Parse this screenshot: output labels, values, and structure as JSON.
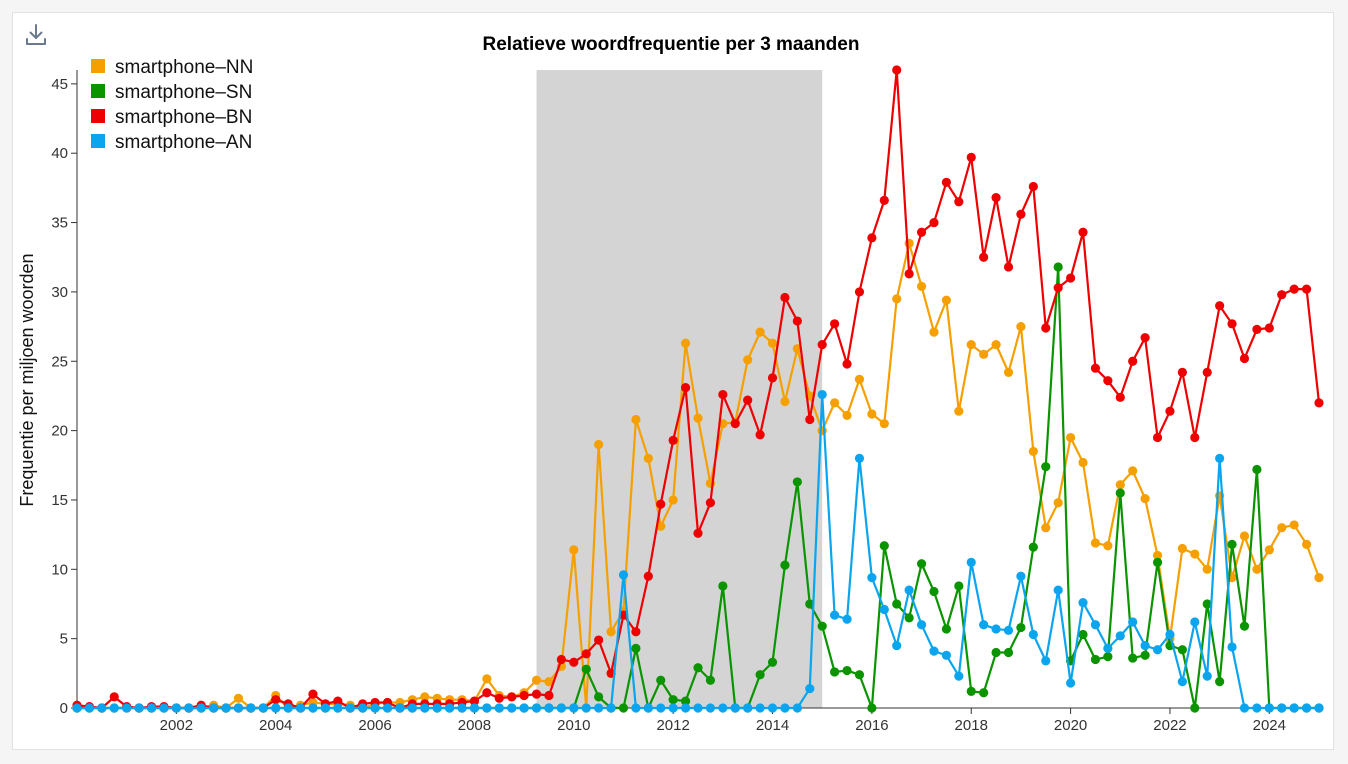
{
  "toolbar": {
    "download_icon": "download-icon"
  },
  "colors": {
    "NN": "#f5a000",
    "SN": "#0a9400",
    "BN": "#ee0000",
    "AN": "#0aa5ee",
    "highlight": "#d4d4d4",
    "axis": "#333333"
  },
  "chart_data": {
    "type": "line",
    "title": "Relatieve woordfrequentie per 3 maanden",
    "xlabel": "",
    "ylabel": "Frequentie per miljoen woorden",
    "xlim": [
      2000,
      2025
    ],
    "ylim": [
      0,
      46
    ],
    "xticks": [
      2002,
      2004,
      2006,
      2008,
      2010,
      2012,
      2014,
      2016,
      2018,
      2020,
      2022,
      2024
    ],
    "yticks": [
      0,
      5,
      10,
      15,
      20,
      25,
      30,
      35,
      40,
      45
    ],
    "highlight_range": [
      2009.25,
      2015.0
    ],
    "legend_position": "top-left",
    "grid": false,
    "x": [
      2000.0,
      2000.25,
      2000.5,
      2000.75,
      2001.0,
      2001.25,
      2001.5,
      2001.75,
      2002.0,
      2002.25,
      2002.5,
      2002.75,
      2003.0,
      2003.25,
      2003.5,
      2003.75,
      2004.0,
      2004.25,
      2004.5,
      2004.75,
      2005.0,
      2005.25,
      2005.5,
      2005.75,
      2006.0,
      2006.25,
      2006.5,
      2006.75,
      2007.0,
      2007.25,
      2007.5,
      2007.75,
      2008.0,
      2008.25,
      2008.5,
      2008.75,
      2009.0,
      2009.25,
      2009.5,
      2009.75,
      2010.0,
      2010.25,
      2010.5,
      2010.75,
      2011.0,
      2011.25,
      2011.5,
      2011.75,
      2012.0,
      2012.25,
      2012.5,
      2012.75,
      2013.0,
      2013.25,
      2013.5,
      2013.75,
      2014.0,
      2014.25,
      2014.5,
      2014.75,
      2015.0,
      2015.25,
      2015.5,
      2015.75,
      2016.0,
      2016.25,
      2016.5,
      2016.75,
      2017.0,
      2017.25,
      2017.5,
      2017.75,
      2018.0,
      2018.25,
      2018.5,
      2018.75,
      2019.0,
      2019.25,
      2019.5,
      2019.75,
      2020.0,
      2020.25,
      2020.5,
      2020.75,
      2021.0,
      2021.25,
      2021.5,
      2021.75,
      2022.0,
      2022.25,
      2022.5,
      2022.75,
      2023.0,
      2023.25,
      2023.5,
      2023.75,
      2024.0,
      2024.25,
      2024.5,
      2024.75,
      2025.0
    ],
    "series": [
      {
        "name": "smartphone–NN",
        "color": "#f5a000",
        "values": [
          0,
          0,
          0,
          0,
          0,
          0,
          0,
          0,
          0,
          0,
          0,
          0.2,
          0,
          0.7,
          0,
          0,
          0.9,
          0,
          0.2,
          0.4,
          0.3,
          0.3,
          0.2,
          0,
          0.3,
          0.4,
          0.4,
          0.6,
          0.8,
          0.7,
          0.6,
          0.6,
          0.5,
          2.1,
          0.9,
          0.8,
          1.1,
          2.0,
          1.9,
          3.0,
          11.4,
          0,
          19.0,
          5.5,
          7.0,
          20.8,
          18.0,
          13.1,
          15.0,
          26.3,
          20.9,
          16.2,
          20.5,
          20.6,
          25.1,
          27.1,
          26.3,
          22.1,
          25.9,
          22.5,
          20.0,
          22.0,
          21.1,
          23.7,
          21.2,
          20.5,
          29.5,
          33.5,
          30.4,
          27.1,
          29.4,
          21.4,
          26.2,
          25.5,
          26.2,
          24.2,
          27.5,
          18.5,
          13.0,
          14.8,
          19.5,
          17.7,
          11.9,
          11.7,
          16.1,
          17.1,
          15.1,
          11.0,
          5.0,
          11.5,
          11.1,
          10.0,
          15.3,
          9.4,
          12.4,
          10.0,
          11.4,
          13.0,
          13.2,
          11.8,
          9.4
        ]
      },
      {
        "name": "smartphone–SN",
        "color": "#0a9400",
        "values": [
          0,
          0,
          0,
          0,
          0,
          0,
          0,
          0,
          0,
          0,
          0,
          0,
          0,
          0,
          0,
          0,
          0,
          0,
          0,
          0,
          0,
          0,
          0,
          0,
          0,
          0,
          0,
          0,
          0,
          0,
          0,
          0,
          0,
          0,
          0,
          0,
          0,
          0,
          0,
          0,
          0,
          2.8,
          0.8,
          0,
          0,
          4.3,
          0,
          2.0,
          0.6,
          0.5,
          2.9,
          2.0,
          8.8,
          0,
          0,
          2.4,
          3.3,
          10.3,
          16.3,
          7.5,
          5.9,
          2.6,
          2.7,
          2.4,
          0,
          11.7,
          7.5,
          6.5,
          10.4,
          8.4,
          5.7,
          8.8,
          1.2,
          1.1,
          4.0,
          4.0,
          5.8,
          11.6,
          17.4,
          31.8,
          3.4,
          5.3,
          3.5,
          3.7,
          15.5,
          3.6,
          3.8,
          10.5,
          4.5,
          4.2,
          0,
          7.5,
          1.9,
          11.8,
          5.9,
          17.2,
          0,
          0,
          0,
          0,
          0
        ]
      },
      {
        "name": "smartphone–BN",
        "color": "#ee0000",
        "values": [
          0.2,
          0.1,
          0,
          0.8,
          0.1,
          0,
          0.1,
          0.1,
          0,
          0,
          0.2,
          0,
          0,
          0,
          0,
          0,
          0.6,
          0.3,
          0,
          1.0,
          0.3,
          0.5,
          0,
          0.3,
          0.4,
          0.4,
          0,
          0.3,
          0.3,
          0.3,
          0.3,
          0.4,
          0.5,
          1.1,
          0.7,
          0.8,
          0.9,
          1.0,
          0.9,
          3.5,
          3.3,
          3.9,
          4.9,
          2.5,
          6.7,
          5.5,
          9.5,
          14.7,
          19.3,
          23.1,
          12.6,
          14.8,
          22.6,
          20.5,
          22.2,
          19.7,
          23.8,
          29.6,
          27.9,
          20.8,
          26.2,
          27.7,
          24.8,
          30.0,
          33.9,
          36.6,
          46.0,
          31.3,
          34.3,
          35.0,
          37.9,
          36.5,
          39.7,
          32.5,
          36.8,
          31.8,
          35.6,
          37.6,
          27.4,
          30.3,
          31.0,
          34.3,
          24.5,
          23.6,
          22.4,
          25.0,
          26.7,
          19.5,
          21.4,
          24.2,
          19.5,
          24.2,
          29.0,
          27.7,
          25.2,
          27.3,
          27.4,
          29.8,
          30.2,
          30.2,
          22.0
        ]
      },
      {
        "name": "smartphone–AN",
        "color": "#0aa5ee",
        "values": [
          0,
          0,
          0,
          0,
          0,
          0,
          0,
          0,
          0,
          0,
          0,
          0,
          0,
          0,
          0,
          0,
          0,
          0,
          0,
          0,
          0,
          0,
          0,
          0,
          0,
          0,
          0,
          0,
          0,
          0,
          0,
          0,
          0,
          0,
          0,
          0,
          0,
          0,
          0,
          0,
          0,
          0,
          0,
          0,
          9.6,
          0,
          0,
          0,
          0,
          0,
          0,
          0,
          0,
          0,
          0,
          0,
          0,
          0,
          0,
          1.4,
          22.6,
          6.7,
          6.4,
          18.0,
          9.4,
          7.1,
          4.5,
          8.5,
          6.0,
          4.1,
          3.8,
          2.3,
          10.5,
          6.0,
          5.7,
          5.6,
          9.5,
          5.3,
          3.4,
          8.5,
          1.8,
          7.6,
          6.0,
          4.3,
          5.2,
          6.2,
          4.5,
          4.2,
          5.3,
          1.9,
          6.2,
          2.3,
          18.0,
          4.4,
          0,
          0,
          0,
          0,
          0,
          0,
          0
        ]
      }
    ]
  }
}
